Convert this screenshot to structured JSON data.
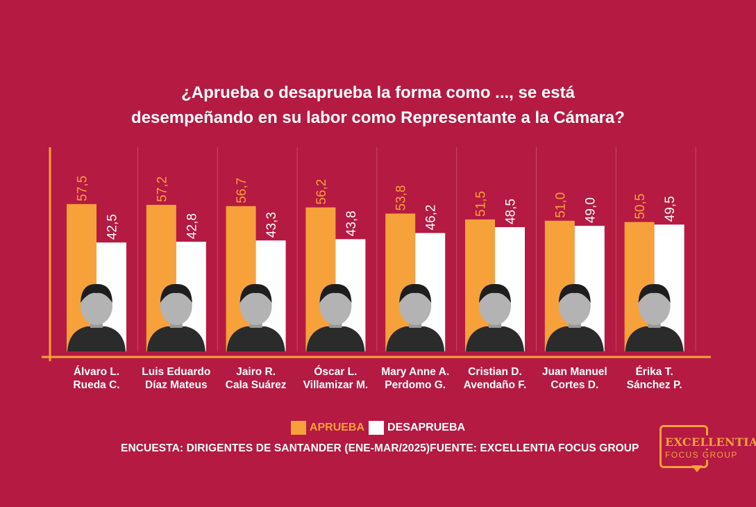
{
  "title": {
    "line1": "¿Aprueba o desaprueba la forma como ..., se está",
    "line2": "desempeñando en su labor como Representante a la Cámara?"
  },
  "legend": {
    "aprueba": "APRUEBA",
    "desaprueba": "DESAPRUEBA"
  },
  "source": "ENCUESTA: DIRIGENTES DE SANTANDER (ENE-MAR/2025)FUENTE: EXCELLENTIA FOCUS GROUP",
  "logo": {
    "line1": "EXCELLENTIA",
    "line2": "FOCUS GROUP"
  },
  "colors": {
    "background": "#b41a42",
    "aprueba": "#f7a13b",
    "desaprueba": "#ffffff",
    "axis": "#f7a13b"
  },
  "chart_data": {
    "type": "bar",
    "title": "¿Aprueba o desaprueba la forma como ..., se está desempeñando en su labor como Representante a la Cámara?",
    "categories": [
      [
        "Álvaro L.",
        "Rueda C."
      ],
      [
        "Luis Eduardo",
        "Díaz Mateus"
      ],
      [
        "Jairo R.",
        "Cala Suárez"
      ],
      [
        "Óscar L.",
        "Villamizar M."
      ],
      [
        "Mary Anne A.",
        "Perdomo G."
      ],
      [
        "Cristian D.",
        "Avendaño F."
      ],
      [
        "Juan Manuel",
        "Cortes D."
      ],
      [
        "Érika T.",
        "Sánchez P."
      ]
    ],
    "series": [
      {
        "name": "APRUEBA",
        "values": [
          57.5,
          57.2,
          56.7,
          56.2,
          53.8,
          51.5,
          51.0,
          50.5
        ],
        "labels": [
          "57,5",
          "57,2",
          "56,7",
          "56,2",
          "53,8",
          "51,5",
          "51,0",
          "50,5"
        ]
      },
      {
        "name": "DESAPRUEBA",
        "values": [
          42.5,
          42.8,
          43.3,
          43.8,
          46.2,
          48.5,
          49.0,
          49.5
        ],
        "labels": [
          "42,5",
          "42,8",
          "43,3",
          "43,8",
          "46,2",
          "48,5",
          "49,0",
          "49,5"
        ]
      }
    ],
    "grid": false,
    "legend_position": "bottom"
  }
}
